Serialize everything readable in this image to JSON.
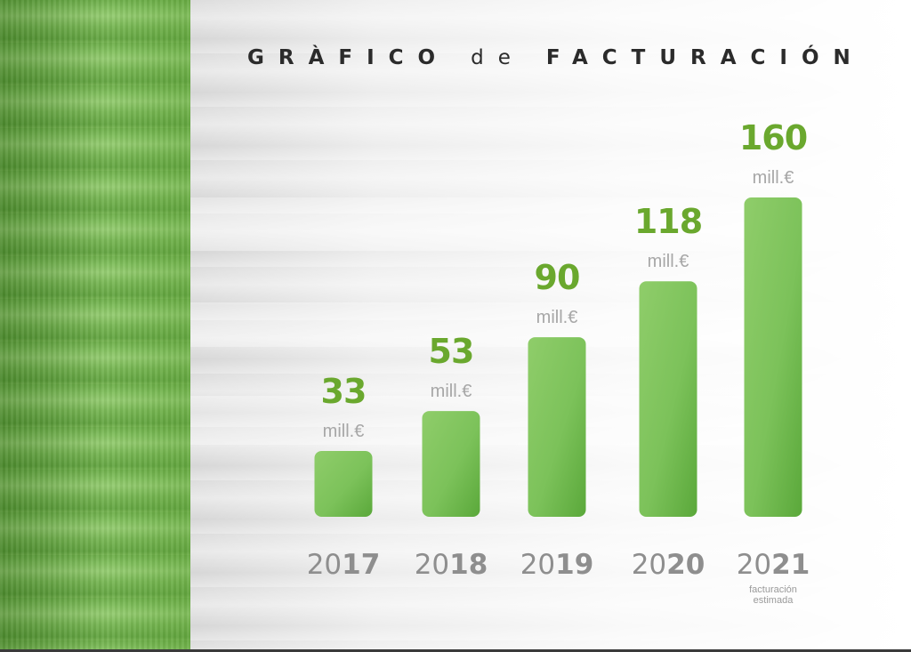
{
  "title_part1": "GRÀFICO",
  "title_part2": "de",
  "title_part3": "FACTURACIÓN",
  "colors": {
    "bar": "#6ab94a",
    "bar_light": "#8fcd6a",
    "value": "#6aa82e",
    "year": "#8e8e8e"
  },
  "chart_data": {
    "type": "bar",
    "categories": [
      "2017",
      "2018",
      "2019",
      "2020",
      "2021"
    ],
    "year_prefix": [
      "20",
      "20",
      "20",
      "20",
      "20"
    ],
    "year_suffix": [
      "17",
      "18",
      "19",
      "20",
      "21"
    ],
    "values": [
      33,
      53,
      90,
      118,
      160
    ],
    "value_labels": [
      "33",
      "53",
      "90",
      "118",
      "160"
    ],
    "unit": "mill.€",
    "notes": [
      "",
      "",
      "",
      "",
      "facturación estimada"
    ],
    "note_lines": [
      [],
      [],
      [],
      [],
      [
        "facturación",
        "estimada"
      ]
    ],
    "title": "GRÀFICO de FACTURACIÓN",
    "xlabel": "",
    "ylabel": "",
    "ylim": [
      0,
      160
    ],
    "grid": false,
    "legend": "none"
  }
}
